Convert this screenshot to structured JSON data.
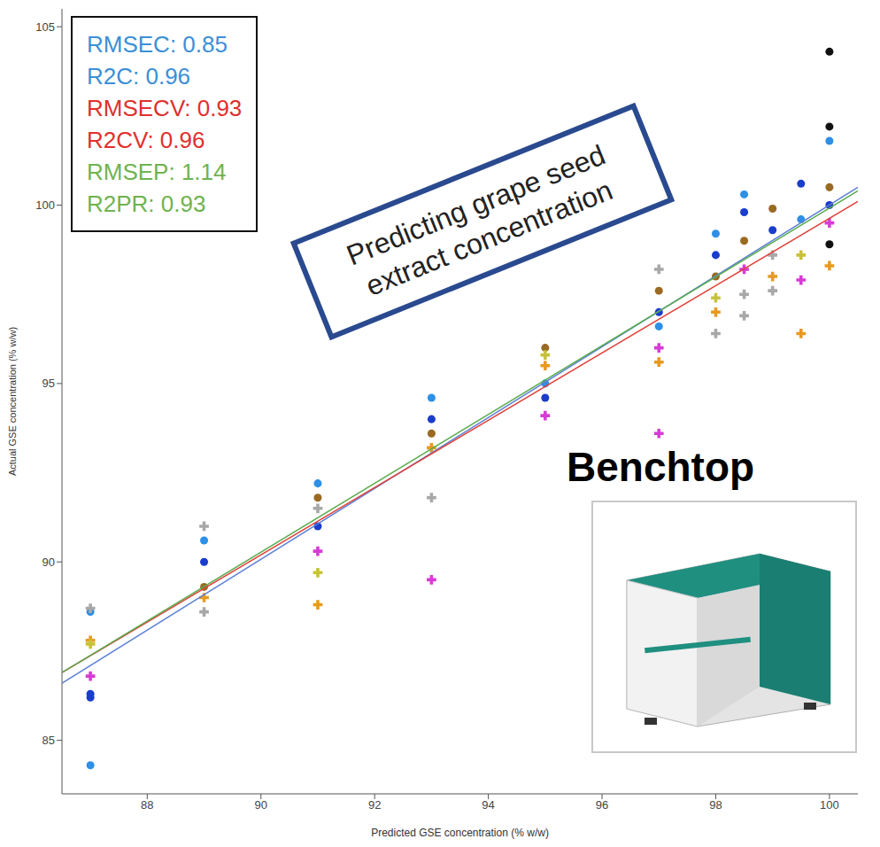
{
  "chart_data": {
    "type": "scatter",
    "x_label": "Predicted GSE concentration (% w/w)",
    "y_label": "Actual GSE concentration (% w/w)",
    "xlim": [
      86.5,
      100.5
    ],
    "ylim": [
      83.5,
      105.5
    ],
    "xticks": [
      88,
      90,
      92,
      94,
      96,
      98,
      100
    ],
    "yticks": [
      85,
      90,
      95,
      100,
      105
    ],
    "grid": false,
    "annotation": "Predicting grape seed extract concentration",
    "instrument_label": "Benchtop",
    "stats_box": [
      {
        "text": "RMSEC: 0.85",
        "color": "#3b8fd6"
      },
      {
        "text": "R2C: 0.96",
        "color": "#3b8fd6"
      },
      {
        "text": "RMSECV: 0.93",
        "color": "#e0302c"
      },
      {
        "text": "R2CV: 0.96",
        "color": "#e0302c"
      },
      {
        "text": "RMSEP: 1.14",
        "color": "#6fb34f"
      },
      {
        "text": "R2PR: 0.93",
        "color": "#6fb34f"
      }
    ],
    "series": [
      {
        "type": "scatter",
        "color": "#2e8fe6",
        "marker": "circle",
        "x": [
          87,
          87,
          89,
          91,
          93,
          95,
          97,
          98,
          98.5,
          99.5,
          100
        ],
        "values": [
          84.3,
          88.6,
          90.6,
          92.2,
          94.6,
          95.0,
          96.6,
          99.2,
          100.3,
          99.6,
          101.8
        ]
      },
      {
        "type": "scatter",
        "color": "#1a3dcc",
        "marker": "circle",
        "x": [
          87,
          87,
          89,
          91,
          93,
          95,
          97,
          98,
          98.5,
          99,
          99.5,
          100
        ],
        "values": [
          86.2,
          86.3,
          90.0,
          91.0,
          94.0,
          94.6,
          97.0,
          98.6,
          99.8,
          99.3,
          100.6,
          100.0
        ]
      },
      {
        "type": "scatter",
        "color": "#d63cd6",
        "marker": "plus",
        "x": [
          87,
          91,
          93,
          95,
          97,
          97,
          98.5,
          99.5,
          100
        ],
        "values": [
          86.8,
          90.3,
          89.5,
          94.1,
          96.0,
          93.6,
          98.2,
          97.9,
          99.5
        ]
      },
      {
        "type": "scatter",
        "color": "#e89a1e",
        "marker": "plus",
        "x": [
          87,
          89,
          91,
          93,
          95,
          97,
          98,
          99,
          99.5,
          100
        ],
        "values": [
          87.8,
          89.0,
          88.8,
          93.2,
          95.5,
          95.6,
          97.0,
          98.0,
          96.4,
          98.3
        ]
      },
      {
        "type": "scatter",
        "color": "#9a6a22",
        "marker": "circle",
        "x": [
          89,
          91,
          93,
          95,
          97,
          98,
          98.5,
          99,
          100
        ],
        "values": [
          89.3,
          91.8,
          93.6,
          96.0,
          97.6,
          98.0,
          99.0,
          99.9,
          100.5
        ]
      },
      {
        "type": "scatter",
        "color": "#111111",
        "marker": "circle",
        "x": [
          100,
          100,
          100
        ],
        "values": [
          104.3,
          102.2,
          98.9
        ]
      },
      {
        "type": "scatter",
        "color": "#a8a8a8",
        "marker": "plus",
        "x": [
          87,
          89,
          89,
          91,
          93,
          97,
          98,
          98.5,
          98.5,
          99,
          99
        ],
        "values": [
          88.7,
          88.6,
          91.0,
          91.5,
          91.8,
          98.2,
          96.4,
          96.9,
          97.5,
          97.6,
          98.6
        ]
      },
      {
        "type": "scatter",
        "color": "#c8c23a",
        "marker": "plus",
        "x": [
          87,
          91,
          95,
          98,
          99.5
        ],
        "values": [
          87.7,
          89.7,
          95.8,
          97.4,
          98.6
        ]
      },
      {
        "type": "line",
        "color": "#5b7fd6",
        "x": [
          86.5,
          100.5
        ],
        "values": [
          86.6,
          100.5
        ]
      },
      {
        "type": "line",
        "color": "#e0413a",
        "x": [
          86.5,
          100.5
        ],
        "values": [
          86.9,
          100.1
        ]
      },
      {
        "type": "line",
        "color": "#5aab4e",
        "x": [
          86.5,
          100.5
        ],
        "values": [
          86.9,
          100.4
        ]
      }
    ]
  }
}
